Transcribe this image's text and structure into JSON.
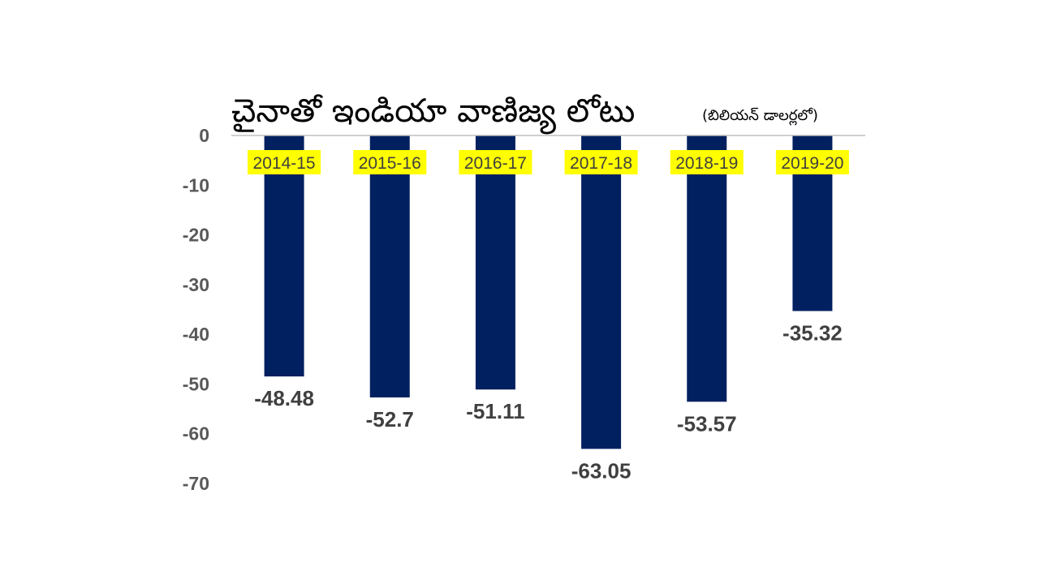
{
  "chart_data": {
    "type": "bar",
    "title": "చైనాతో ఇండియా వాణిజ్య లోటు",
    "subtitle": "(బిలియన్ డాలర్లలో)",
    "categories": [
      "2014-15",
      "2015-16",
      "2016-17",
      "2017-18",
      "2018-19",
      "2019-20"
    ],
    "values": [
      -48.48,
      -52.7,
      -51.11,
      -63.05,
      -53.57,
      -35.32
    ],
    "data_labels": [
      "-48.48",
      "-52.7",
      "-51.11",
      "-63.05",
      "-53.57",
      "-35.32"
    ],
    "ylim": [
      -70,
      0
    ],
    "yticks": [
      0,
      -10,
      -20,
      -30,
      -40,
      -50,
      -60,
      -70
    ],
    "ytick_labels": [
      "0",
      "-10",
      "-20",
      "-30",
      "-40",
      "-50",
      "-60",
      "-70"
    ],
    "xlabel": "",
    "ylabel": "",
    "grid": false,
    "legend": "none",
    "colors": {
      "bar": "#002060",
      "category_highlight": "#FFFF00",
      "axis_text": "#595959",
      "data_label": "#404040",
      "axis_line": "#BFBFBF",
      "title": "#000000"
    }
  }
}
